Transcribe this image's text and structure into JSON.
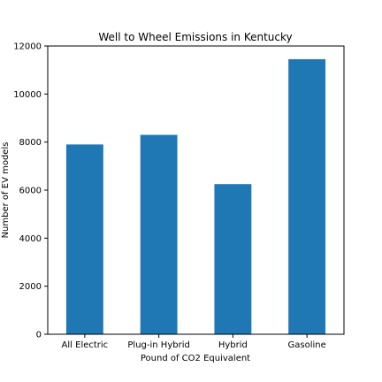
{
  "chart_data": {
    "type": "bar",
    "title": "Well to Wheel Emissions in Kentucky",
    "xlabel": "Pound of CO2 Equivalent",
    "ylabel": "Number of EV models",
    "categories": [
      "All Electric",
      "Plug-in Hybrid",
      "Hybrid",
      "Gasoline"
    ],
    "values": [
      7900,
      8300,
      6250,
      11450
    ],
    "ylim": [
      0,
      12000
    ],
    "yticks": [
      0,
      2000,
      4000,
      6000,
      8000,
      10000,
      12000
    ],
    "bar_color": "#1f77b4",
    "grid": false,
    "legend": "none"
  }
}
